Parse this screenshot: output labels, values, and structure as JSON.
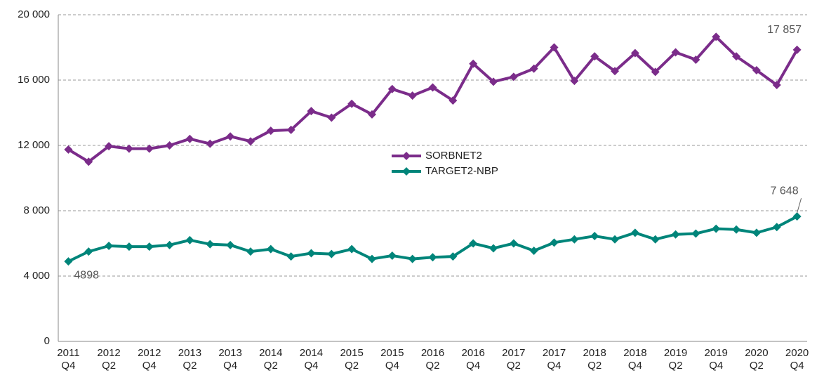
{
  "chart_data": {
    "type": "line",
    "categories": [
      "2011 Q4",
      null,
      "2012 Q2",
      null,
      "2012 Q4",
      null,
      "2013 Q2",
      null,
      "2013 Q4",
      null,
      "2014 Q2",
      null,
      "2014 Q4",
      null,
      "2015 Q2",
      null,
      "2015 Q4",
      null,
      "2016 Q2",
      null,
      "2016 Q4",
      null,
      "2017 Q2",
      null,
      "2017 Q4",
      null,
      "2018 Q2",
      null,
      "2018 Q4",
      null,
      "2019 Q2",
      null,
      "2019 Q4",
      null,
      "2020 Q2",
      null,
      "2020 Q4"
    ],
    "series": [
      {
        "name": "SORBNET2",
        "color": "#7b2c8a",
        "values": [
          11750,
          11000,
          11950,
          11800,
          11800,
          12000,
          12400,
          12100,
          12550,
          12250,
          12900,
          12950,
          14100,
          13700,
          14550,
          13900,
          15450,
          15050,
          15550,
          14750,
          17000,
          15900,
          16200,
          16700,
          18000,
          15950,
          17450,
          16550,
          17650,
          16500,
          17700,
          17250,
          18650,
          17450,
          16600,
          15700,
          17857
        ],
        "value_labels": [
          null,
          null,
          null,
          null,
          null,
          null,
          null,
          null,
          null,
          null,
          null,
          null,
          null,
          null,
          null,
          null,
          null,
          null,
          null,
          null,
          null,
          null,
          null,
          null,
          null,
          null,
          null,
          null,
          null,
          null,
          null,
          null,
          null,
          null,
          null,
          null,
          "17 857"
        ]
      },
      {
        "name": "TARGET2-NBP",
        "color": "#00857a",
        "values": [
          4898,
          5500,
          5850,
          5800,
          5800,
          5900,
          6200,
          5950,
          5900,
          5500,
          5650,
          5200,
          5400,
          5350,
          5650,
          5050,
          5250,
          5050,
          5150,
          5200,
          6000,
          5700,
          6000,
          5550,
          6050,
          6250,
          6450,
          6250,
          6650,
          6250,
          6550,
          6600,
          6900,
          6850,
          6650,
          7000,
          7648
        ],
        "value_labels": [
          "4898",
          null,
          null,
          null,
          null,
          null,
          null,
          null,
          null,
          null,
          null,
          null,
          null,
          null,
          null,
          null,
          null,
          null,
          null,
          null,
          null,
          null,
          null,
          null,
          null,
          null,
          null,
          null,
          null,
          null,
          null,
          null,
          null,
          null,
          null,
          null,
          "7 648"
        ]
      }
    ],
    "ylim": [
      0,
      20000
    ],
    "yticks": [
      0,
      {
        "value": 4000,
        "label": "4 000"
      },
      {
        "value": 8000,
        "label": "8 000"
      },
      {
        "value": 12000,
        "label": "12 000"
      },
      {
        "value": 16000,
        "label": "16 000"
      },
      {
        "value": 20000,
        "label": "20 000"
      }
    ],
    "grid": true,
    "legend": "center"
  }
}
